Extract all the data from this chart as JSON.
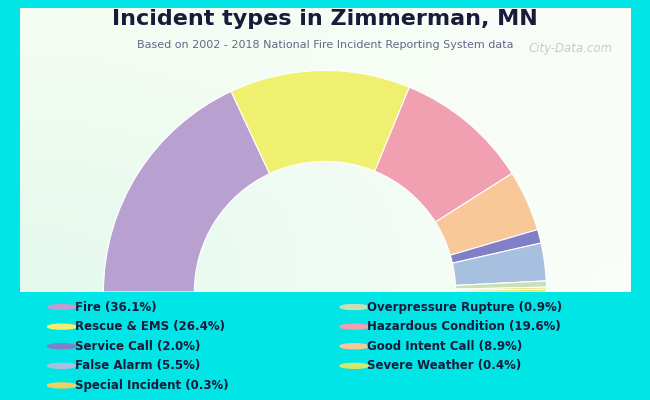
{
  "title": "Incident types in Zimmerman, MN",
  "subtitle": "Based on 2002 - 2018 National Fire Incident Reporting System data",
  "bg_color": "#00e5e5",
  "watermark": "City-Data.com",
  "display_order": [
    {
      "label": "Fire (36.1%)",
      "value": 36.1,
      "color": "#b8a0d0"
    },
    {
      "label": "Rescue & EMS (26.4%)",
      "value": 26.4,
      "color": "#f0f070"
    },
    {
      "label": "Hazardous Condition (19.6%)",
      "value": 19.6,
      "color": "#f0a0b0"
    },
    {
      "label": "Good Intent Call (8.9%)",
      "value": 8.9,
      "color": "#f8c898"
    },
    {
      "label": "Service Call (2.0%)",
      "value": 2.0,
      "color": "#8080c8"
    },
    {
      "label": "False Alarm (5.5%)",
      "value": 5.5,
      "color": "#a8c0e0"
    },
    {
      "label": "Overpressure Rupture (0.9%)",
      "value": 0.9,
      "color": "#c8e0b8"
    },
    {
      "label": "Special Incident (0.3%)",
      "value": 0.3,
      "color": "#f0d060"
    },
    {
      "label": "Severe Weather (0.4%)",
      "value": 0.4,
      "color": "#d0e870"
    }
  ],
  "legend_left": [
    {
      "label": "Fire (36.1%)",
      "color": "#b8a0d0"
    },
    {
      "label": "Rescue & EMS (26.4%)",
      "color": "#f0f070"
    },
    {
      "label": "Service Call (2.0%)",
      "color": "#8080c8"
    },
    {
      "label": "False Alarm (5.5%)",
      "color": "#a8c0e0"
    },
    {
      "label": "Special Incident (0.3%)",
      "color": "#f0d060"
    }
  ],
  "legend_right": [
    {
      "label": "Overpressure Rupture (0.9%)",
      "color": "#c8e0b8"
    },
    {
      "label": "Hazardous Condition (19.6%)",
      "color": "#f0a0b0"
    },
    {
      "label": "Good Intent Call (8.9%)",
      "color": "#f8c898"
    },
    {
      "label": "Severe Weather (0.4%)",
      "color": "#d0e870"
    }
  ],
  "outer_r": 0.78,
  "inner_r": 0.46,
  "title_fontsize": 16,
  "subtitle_fontsize": 8,
  "legend_fontsize": 8.5
}
